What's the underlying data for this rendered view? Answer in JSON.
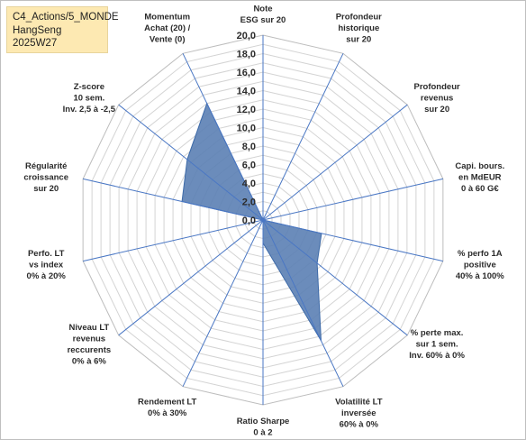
{
  "header_box": {
    "line1": "C4_Actions/5_MONDE",
    "line2": "HangSeng",
    "line3": "2025W27"
  },
  "chart_data": {
    "type": "radar",
    "rmax": 20,
    "ticks": [
      "0,0",
      "2,0",
      "4,0",
      "6,0",
      "8,0",
      "10,0",
      "12,0",
      "14,0",
      "16,0",
      "18,0",
      "20,0"
    ],
    "axes": [
      {
        "label": [
          "Note",
          "ESG sur 20"
        ]
      },
      {
        "label": [
          "Profondeur",
          "historique",
          "sur 20"
        ]
      },
      {
        "label": [
          "Profondeur",
          "revenus",
          "sur 20"
        ]
      },
      {
        "label": [
          "Capi. bours.",
          "en MdEUR",
          "0 à 60 G€"
        ]
      },
      {
        "label": [
          "% perfo 1A",
          "positive",
          "40% à 100%"
        ]
      },
      {
        "label": [
          "% perte max.",
          "sur 1 sem.",
          "Inv. 60% à 0%"
        ]
      },
      {
        "label": [
          "Volatilité LT",
          "inversée",
          "60% à 0%"
        ]
      },
      {
        "label": [
          "Ratio Sharpe",
          "0 à 2"
        ]
      },
      {
        "label": [
          "Rendement LT",
          "0% à 30%"
        ]
      },
      {
        "label": [
          "Niveau LT",
          "revenus",
          "reccurents",
          "0% à 6%"
        ]
      },
      {
        "label": [
          "Perfo. LT",
          "vs index",
          "0% à 20%"
        ]
      },
      {
        "label": [
          "Régularité",
          "croissance",
          "sur 20"
        ]
      },
      {
        "label": [
          "Z-score",
          "10 sem.",
          "Inv. 2,5 à -2,5"
        ]
      },
      {
        "label": [
          "Momentum",
          "Achat (20) /",
          "Vente (0)"
        ]
      }
    ],
    "series": [
      {
        "values": [
          0,
          0,
          0,
          0,
          6.5,
          7.5,
          14.5,
          2.5,
          0,
          0,
          0,
          9,
          10.5,
          14
        ],
        "color": "#5b80b4"
      }
    ]
  }
}
